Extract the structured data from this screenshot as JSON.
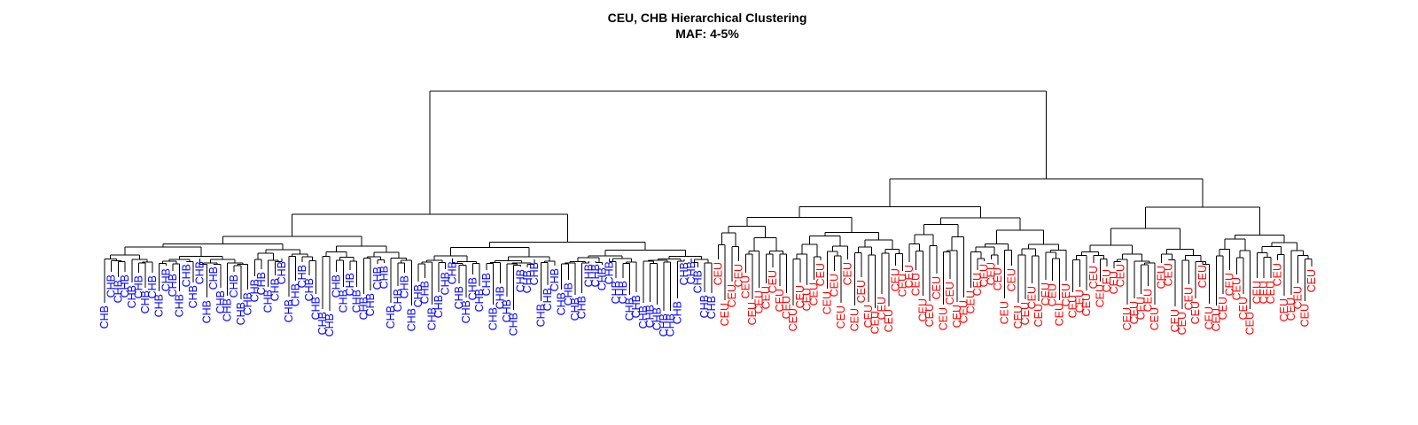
{
  "chart_data": {
    "type": "dendrogram",
    "title": "CEU, CHB Hierarchical Clustering",
    "subtitle": "MAF: 4-5%",
    "xlabel": "",
    "ylabel": "",
    "axes_visible": false,
    "grid": false,
    "legend": "none",
    "populations": [
      {
        "name": "CHB",
        "color": "#0000ff",
        "leaf_count": 90
      },
      {
        "name": "CEU",
        "color": "#ff0000",
        "leaf_count": 88
      }
    ],
    "leaf_order": "all CHB leaves first, then all CEU leaves",
    "root_height": 1.0,
    "cluster_heights": {
      "CHB": 0.14,
      "CEU": 0.3
    },
    "leaf_label_text": {
      "CHB": "CHB",
      "CEU": "CEU"
    }
  }
}
